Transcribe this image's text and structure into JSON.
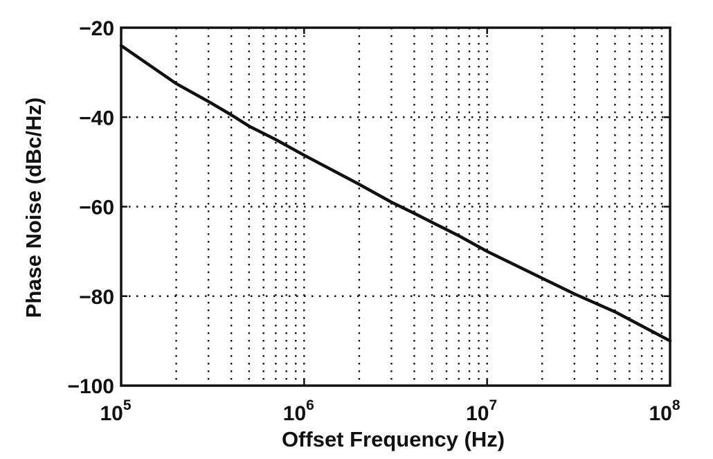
{
  "chart_data": {
    "type": "line",
    "title": "",
    "xlabel": "Offset Frequency (Hz)",
    "ylabel": "Phase Noise (dBc/Hz)",
    "x_scale": "log",
    "y_scale": "linear",
    "xlim": [
      100000,
      100000000
    ],
    "ylim": [
      -100,
      -20
    ],
    "grid": true,
    "grid_style": "dotted",
    "x_ticks": [
      100000,
      1000000,
      10000000,
      100000000
    ],
    "x_tick_labels": [
      {
        "base": "10",
        "exp": "5"
      },
      {
        "base": "10",
        "exp": "6"
      },
      {
        "base": "10",
        "exp": "7"
      },
      {
        "base": "10",
        "exp": "8"
      }
    ],
    "y_ticks": [
      -100,
      -80,
      -60,
      -40,
      -20
    ],
    "y_tick_labels": [
      "−100",
      "−80",
      "−60",
      "−40",
      "−20"
    ],
    "series": [
      {
        "color": "#111111",
        "x": [
          100000,
          200000,
          300000,
          400000,
          500000,
          700000,
          1000000,
          2000000,
          3000000,
          4000000,
          5000000,
          7000000,
          10000000,
          20000000,
          30000000,
          50000000,
          100000000
        ],
        "y": [
          -24,
          -32.5,
          -36.5,
          -39.5,
          -42,
          -45,
          -48.5,
          -55,
          -59,
          -61.5,
          -63.5,
          -66.5,
          -70,
          -76,
          -79.5,
          -83.5,
          -90
        ]
      }
    ]
  }
}
